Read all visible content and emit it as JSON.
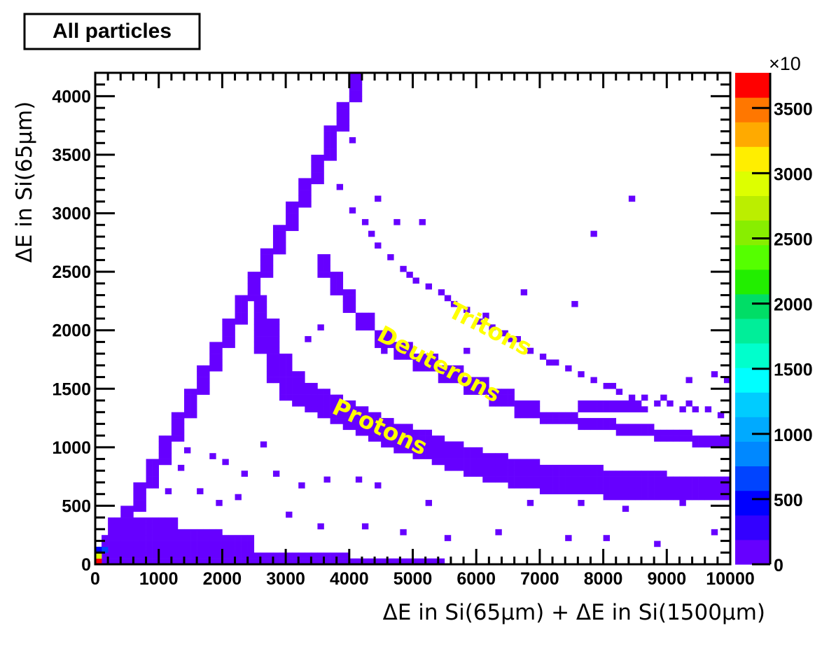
{
  "title": "All particles",
  "chart_data": {
    "type": "heatmap",
    "xlabel": "ΔE in Si(65µm) + ΔE in Si(1500µm)",
    "ylabel": "ΔE in Si(65µm)",
    "xlim": [
      0,
      10000
    ],
    "ylim": [
      0,
      4200
    ],
    "bin_size": [
      100,
      50
    ],
    "x_ticks": [
      "0",
      "1000",
      "2000",
      "3000",
      "4000",
      "5000",
      "6000",
      "7000",
      "8000",
      "9000",
      "10000"
    ],
    "y_ticks": [
      "0",
      "500",
      "1000",
      "1500",
      "2000",
      "2500",
      "3000",
      "3500",
      "4000"
    ],
    "colorbar": {
      "multiplier_label": "×10",
      "range": [
        0,
        3770
      ],
      "ticks": [
        "0",
        "500",
        "1000",
        "1500",
        "2000",
        "2500",
        "3000",
        "3500"
      ],
      "palette": [
        "#6600ff",
        "#3300ff",
        "#0000ff",
        "#0044ff",
        "#0088ff",
        "#00aaff",
        "#00ccff",
        "#00ffff",
        "#00ffcc",
        "#00ee99",
        "#00dd66",
        "#22ee00",
        "#55ff00",
        "#88ee00",
        "#bbee00",
        "#ddff00",
        "#ffee00",
        "#ffaa00",
        "#ff7700",
        "#ff0000"
      ]
    },
    "annotations": [
      {
        "text": "Tritons"
      },
      {
        "text": "Deuterons"
      },
      {
        "text": "Protons"
      }
    ],
    "default_count": 50,
    "filled_regions": [
      [
        200,
        400,
        50,
        300
      ],
      [
        400,
        600,
        250,
        500
      ],
      [
        600,
        800,
        450,
        700
      ],
      [
        800,
        1000,
        650,
        900
      ],
      [
        1000,
        1200,
        850,
        1100
      ],
      [
        1200,
        1400,
        1050,
        1300
      ],
      [
        1400,
        1600,
        1250,
        1500
      ],
      [
        1600,
        1800,
        1450,
        1700
      ],
      [
        1800,
        2000,
        1650,
        1900
      ],
      [
        2000,
        2200,
        1850,
        2100
      ],
      [
        2200,
        2400,
        2050,
        2300
      ],
      [
        2400,
        2600,
        2250,
        2500
      ],
      [
        2600,
        2800,
        2450,
        2700
      ],
      [
        2800,
        3000,
        2650,
        2900
      ],
      [
        3000,
        3200,
        2850,
        3100
      ],
      [
        3200,
        3400,
        3050,
        3300
      ],
      [
        3400,
        3600,
        3250,
        3500
      ],
      [
        3600,
        3800,
        3450,
        3750
      ],
      [
        3800,
        4000,
        3700,
        3950
      ],
      [
        4000,
        4200,
        3950,
        4200
      ],
      [
        2500,
        2700,
        1800,
        2300
      ],
      [
        2700,
        2900,
        1550,
        2100
      ],
      [
        2900,
        3100,
        1400,
        1800
      ],
      [
        3100,
        3300,
        1350,
        1650
      ],
      [
        3300,
        3500,
        1300,
        1550
      ],
      [
        3500,
        3700,
        1250,
        1500
      ],
      [
        3700,
        3900,
        1200,
        1450
      ],
      [
        3900,
        4100,
        1150,
        1400
      ],
      [
        4100,
        4300,
        1100,
        1350
      ],
      [
        4300,
        4500,
        1050,
        1300
      ],
      [
        4500,
        4700,
        1000,
        1250
      ],
      [
        4700,
        5000,
        950,
        1200
      ],
      [
        5000,
        5300,
        900,
        1150
      ],
      [
        5300,
        5500,
        850,
        1100
      ],
      [
        5500,
        5800,
        800,
        1050
      ],
      [
        5800,
        6100,
        750,
        1000
      ],
      [
        6100,
        6500,
        700,
        950
      ],
      [
        6500,
        7000,
        650,
        900
      ],
      [
        7000,
        8000,
        600,
        850
      ],
      [
        8000,
        9000,
        550,
        800
      ],
      [
        9000,
        10000,
        550,
        750
      ],
      [
        3500,
        3700,
        2450,
        2650
      ],
      [
        3700,
        3900,
        2300,
        2500
      ],
      [
        3900,
        4100,
        2150,
        2350
      ],
      [
        4100,
        4400,
        2000,
        2150
      ],
      [
        4400,
        4700,
        1850,
        2000
      ],
      [
        4700,
        5000,
        1750,
        1900
      ],
      [
        5000,
        5400,
        1650,
        1800
      ],
      [
        5400,
        5800,
        1550,
        1700
      ],
      [
        5800,
        6200,
        1450,
        1600
      ],
      [
        6200,
        6600,
        1350,
        1500
      ],
      [
        6600,
        7000,
        1250,
        1400
      ],
      [
        7000,
        7600,
        1200,
        1300
      ],
      [
        7600,
        8200,
        1150,
        1250
      ],
      [
        8200,
        8800,
        1100,
        1200
      ],
      [
        8800,
        9400,
        1050,
        1150
      ],
      [
        9400,
        10000,
        1000,
        1100
      ],
      [
        7600,
        8600,
        1300,
        1400
      ],
      [
        100,
        2500,
        0,
        250
      ],
      [
        200,
        1300,
        250,
        400
      ],
      [
        1300,
        2000,
        250,
        300
      ],
      [
        100,
        4000,
        0,
        100
      ],
      [
        4000,
        5500,
        0,
        50
      ]
    ],
    "scattered_bins": [
      [
        3800,
        3200
      ],
      [
        4000,
        3000
      ],
      [
        4200,
        2900
      ],
      [
        4400,
        2700
      ],
      [
        4600,
        2600
      ],
      [
        4800,
        2500
      ],
      [
        5000,
        2400
      ],
      [
        5200,
        2350
      ],
      [
        5400,
        2300
      ],
      [
        5600,
        2200
      ],
      [
        5800,
        2150
      ],
      [
        6000,
        2050
      ],
      [
        6200,
        2000
      ],
      [
        6400,
        1950
      ],
      [
        6600,
        1900
      ],
      [
        6800,
        1800
      ],
      [
        7000,
        1750
      ],
      [
        7200,
        1700
      ],
      [
        7400,
        1650
      ],
      [
        7600,
        1600
      ],
      [
        7800,
        1550
      ],
      [
        8000,
        1500
      ],
      [
        8200,
        1450
      ],
      [
        8400,
        1400
      ],
      [
        8600,
        1400
      ],
      [
        8800,
        1350
      ],
      [
        9000,
        1350
      ],
      [
        9200,
        1300
      ],
      [
        9400,
        1300
      ],
      [
        9600,
        1300
      ],
      [
        9800,
        1250
      ],
      [
        4300,
        2800
      ],
      [
        4900,
        2450
      ],
      [
        5500,
        2250
      ],
      [
        6100,
        2100
      ],
      [
        6500,
        1900
      ],
      [
        7100,
        1700
      ],
      [
        8100,
        1500
      ],
      [
        8900,
        1400
      ],
      [
        9300,
        1350
      ],
      [
        900,
        700
      ],
      [
        1300,
        800
      ],
      [
        1400,
        950
      ],
      [
        1800,
        900
      ],
      [
        2000,
        850
      ],
      [
        2300,
        750
      ],
      [
        2600,
        1000
      ],
      [
        2800,
        750
      ],
      [
        1600,
        600
      ],
      [
        1100,
        600
      ],
      [
        1900,
        500
      ],
      [
        2200,
        550
      ],
      [
        3200,
        650
      ],
      [
        3600,
        700
      ],
      [
        4100,
        700
      ],
      [
        4400,
        650
      ],
      [
        5200,
        500
      ],
      [
        4800,
        250
      ],
      [
        5500,
        200
      ],
      [
        6300,
        250
      ],
      [
        7400,
        200
      ],
      [
        8000,
        200
      ],
      [
        8800,
        150
      ],
      [
        9700,
        250
      ],
      [
        6800,
        500
      ],
      [
        7600,
        500
      ],
      [
        8300,
        450
      ],
      [
        9200,
        500
      ],
      [
        3000,
        400
      ],
      [
        3500,
        300
      ],
      [
        4200,
        300
      ],
      [
        8400,
        3100
      ],
      [
        7800,
        2800
      ],
      [
        5100,
        2900
      ],
      [
        4400,
        3100
      ],
      [
        4000,
        3600
      ],
      [
        4700,
        2900
      ],
      [
        3300,
        1900
      ],
      [
        3500,
        2000
      ],
      [
        4500,
        1800
      ],
      [
        5800,
        1800
      ],
      [
        6700,
        2300
      ],
      [
        7500,
        2200
      ],
      [
        8600,
        1300
      ],
      [
        9300,
        1550
      ],
      [
        9700,
        1600
      ],
      [
        10000,
        1500
      ],
      [
        9900,
        1550
      ]
    ],
    "special_bins": [
      [
        0,
        0,
        3700
      ],
      [
        0,
        50,
        2900
      ],
      [
        100,
        100,
        700
      ],
      [
        0,
        100,
        400
      ]
    ]
  }
}
